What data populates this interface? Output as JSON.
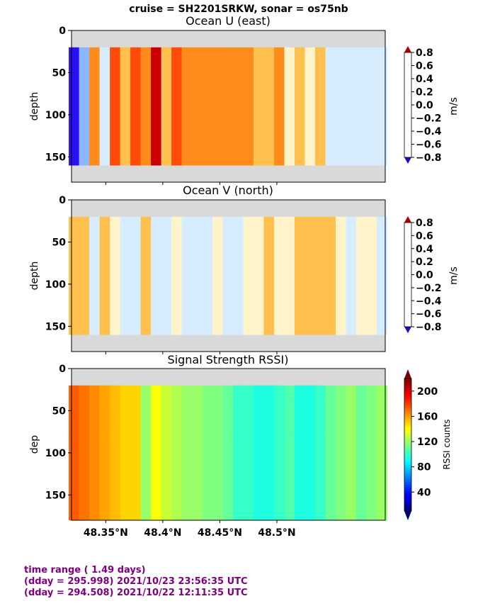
{
  "suptitle": "cruise = SH2201SRKW,  sonar = os75nb",
  "footer": {
    "line1": "time range ( 1.49 days)",
    "line2": "(dday = 295.998) 2021/10/23 23:56:35 UTC",
    "line3": "(dday = 294.508) 2021/10/22 12:11:35 UTC"
  },
  "colors": {
    "missing": "#d9d9d9",
    "footer": "#800080",
    "uv_levels": [
      "#2b10f5",
      "#4a63ff",
      "#8cb6ff",
      "#d6ecff",
      "#fff3c9",
      "#ffc04d",
      "#ff8c1a",
      "#ff4b0a",
      "#c90000"
    ],
    "uv_extend_low": "#2b00d8",
    "uv_extend_high": "#b00000"
  },
  "chart_data": [
    {
      "type": "heatmap",
      "title": "Ocean U (east)",
      "ylabel": "depth",
      "xlim": [
        48.32,
        48.595
      ],
      "ylim": [
        180,
        0
      ],
      "yticks": [
        0,
        50,
        100,
        150
      ],
      "colorbar": {
        "label": "m/s",
        "ticks": [
          "0.8",
          "0.6",
          "0.4",
          "0.2",
          "0.0",
          "−0.2",
          "−0.4",
          "−0.6",
          "−0.8"
        ],
        "range": [
          -0.8,
          0.8
        ],
        "levels": 9
      },
      "valid_depth_range": [
        20,
        160
      ],
      "columns_latitude": [
        48.322,
        48.331,
        48.34,
        48.349,
        48.358,
        48.367,
        48.376,
        48.385,
        48.394,
        48.403,
        48.412,
        48.421,
        48.43,
        48.439,
        48.448,
        48.457,
        48.466,
        48.475,
        48.484,
        48.493,
        48.502,
        48.511,
        48.52,
        48.529,
        48.538,
        48.547,
        48.556,
        48.565,
        48.574,
        48.583,
        48.592
      ],
      "column_values": [
        -0.7,
        -0.3,
        0.3,
        -0.2,
        0.5,
        0.2,
        0.6,
        0.3,
        0.7,
        0.2,
        0.5,
        0.4,
        0.3,
        0.3,
        0.3,
        0.3,
        0.3,
        0.3,
        0.2,
        0.2,
        0.3,
        0.0,
        0.1,
        0.0,
        0.1,
        -0.1,
        -0.1,
        -0.2,
        -0.1,
        -0.2,
        -0.2
      ]
    },
    {
      "type": "heatmap",
      "title": "Ocean V (north)",
      "ylabel": "depth",
      "xlim": [
        48.32,
        48.595
      ],
      "ylim": [
        180,
        0
      ],
      "yticks": [
        0,
        50,
        100,
        150
      ],
      "colorbar": {
        "label": "m/s",
        "ticks": [
          "0.8",
          "0.6",
          "0.4",
          "0.2",
          "0.0",
          "−0.2",
          "−0.4",
          "−0.6",
          "−0.8"
        ],
        "range": [
          -0.8,
          0.8
        ],
        "levels": 9
      },
      "valid_depth_range": [
        20,
        160
      ],
      "columns_latitude": [
        48.322,
        48.331,
        48.34,
        48.349,
        48.358,
        48.367,
        48.376,
        48.385,
        48.394,
        48.403,
        48.412,
        48.421,
        48.43,
        48.439,
        48.448,
        48.457,
        48.466,
        48.475,
        48.484,
        48.493,
        48.502,
        48.511,
        48.52,
        48.529,
        48.538,
        48.547,
        48.556,
        48.565,
        48.574,
        48.583,
        48.592
      ],
      "column_values": [
        0.1,
        0.1,
        -0.1,
        0.1,
        0.0,
        -0.1,
        -0.1,
        0.1,
        -0.1,
        -0.1,
        0.0,
        -0.2,
        -0.1,
        -0.1,
        0.0,
        -0.1,
        -0.1,
        0.0,
        0.0,
        0.1,
        0.0,
        0.0,
        0.1,
        0.2,
        0.1,
        0.1,
        0.0,
        -0.1,
        0.0,
        0.0,
        -0.1
      ]
    },
    {
      "type": "heatmap",
      "title": "Signal Strength RSSI)",
      "ylabel": "dep",
      "xlim": [
        48.32,
        48.595
      ],
      "ylim": [
        180,
        0
      ],
      "yticks": [
        0,
        50,
        100,
        150
      ],
      "xticks": [
        "48.35°N",
        "48.4°N",
        "48.45°N",
        "48.5°N"
      ],
      "xtick_values": [
        48.35,
        48.4,
        48.45,
        48.5
      ],
      "colorbar": {
        "label": "RSSI counts",
        "ticks": [
          "200",
          "160",
          "120",
          "80",
          "40"
        ],
        "range": [
          10,
          220
        ],
        "colormap": "jet"
      },
      "valid_depth_range": [
        20,
        180
      ],
      "columns_latitude": [
        48.322,
        48.331,
        48.34,
        48.349,
        48.358,
        48.367,
        48.376,
        48.385,
        48.394,
        48.403,
        48.412,
        48.421,
        48.43,
        48.439,
        48.448,
        48.457,
        48.466,
        48.475,
        48.484,
        48.493,
        48.502,
        48.511,
        48.52,
        48.529,
        48.538,
        48.547,
        48.556,
        48.565,
        48.574,
        48.583,
        48.592
      ],
      "column_values": [
        175,
        170,
        165,
        160,
        155,
        150,
        150,
        120,
        140,
        130,
        125,
        120,
        120,
        115,
        115,
        110,
        100,
        100,
        95,
        95,
        100,
        105,
        95,
        95,
        100,
        110,
        115,
        120,
        110,
        115,
        120
      ]
    }
  ]
}
